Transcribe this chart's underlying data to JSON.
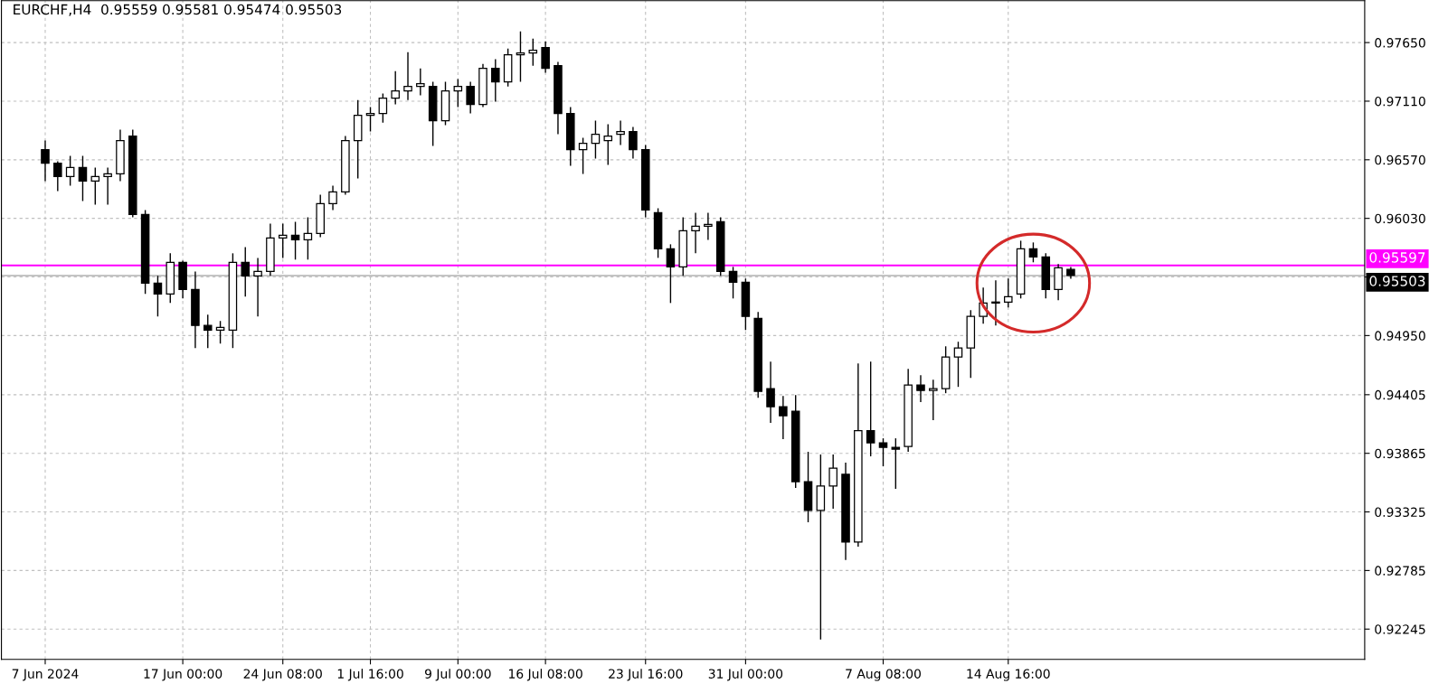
{
  "chart_data": {
    "type": "candlestick",
    "title": "EURCHF,H4  0.95559 0.95581 0.95474 0.95503",
    "categories": [
      null,
      null,
      null,
      "7 Jun 2024",
      null,
      null,
      null,
      null,
      null,
      null,
      null,
      null,
      null,
      null,
      "17 Jun 00:00",
      null,
      null,
      null,
      null,
      null,
      null,
      null,
      "24 Jun 08:00",
      null,
      null,
      null,
      null,
      null,
      null,
      "1 Jul 16:00",
      null,
      null,
      null,
      null,
      null,
      null,
      "9 Jul 00:00",
      null,
      null,
      null,
      null,
      null,
      null,
      "16 Jul 08:00",
      null,
      null,
      null,
      null,
      null,
      null,
      null,
      "23 Jul 16:00",
      null,
      null,
      null,
      null,
      null,
      null,
      null,
      "31 Jul 00:00",
      null,
      null,
      null,
      null,
      null,
      null,
      null,
      null,
      null,
      null,
      "7 Aug 08:00",
      null,
      null,
      null,
      null,
      null,
      null,
      null,
      null,
      null,
      "14 Aug 16:00",
      null,
      null,
      null,
      null,
      null,
      null,
      null,
      null,
      null,
      null,
      null,
      null,
      null,
      null,
      null,
      null,
      null,
      null,
      null,
      null,
      null,
      null,
      null,
      null,
      null,
      null,
      null,
      null
    ],
    "series": [
      {
        "color": "#000000",
        "ohlc": [
          null,
          null,
          null,
          [
            0.96664,
            0.96747,
            0.96373,
            0.96539
          ],
          [
            0.96539,
            0.96556,
            0.96282,
            0.96415
          ],
          [
            0.96415,
            0.96606,
            0.96331,
            0.96498
          ],
          [
            0.96498,
            0.96606,
            0.9619,
            0.96373
          ],
          [
            0.96373,
            0.96498,
            0.96157,
            0.96415
          ],
          [
            0.96415,
            0.96498,
            0.96157,
            0.9644
          ],
          [
            0.9644,
            0.96847,
            0.96373,
            0.96747
          ],
          [
            0.96789,
            0.96847,
            0.9604,
            0.96065
          ],
          [
            0.96065,
            0.96107,
            0.95334,
            0.95433
          ],
          [
            0.95433,
            0.955,
            0.95126,
            0.95334
          ],
          [
            0.95334,
            0.95708,
            0.9525,
            0.95625
          ],
          [
            0.95625,
            0.95641,
            0.95292,
            0.95375
          ],
          [
            0.95375,
            0.95541,
            0.94835,
            0.95043
          ],
          [
            0.95043,
            0.95142,
            0.94835,
            0.95001
          ],
          [
            0.95001,
            0.95084,
            0.94876,
            0.95026
          ],
          [
            0.95001,
            0.95708,
            0.94835,
            0.95625
          ],
          [
            0.95625,
            0.95766,
            0.95309,
            0.955
          ],
          [
            0.955,
            0.95666,
            0.95126,
            0.95541
          ],
          [
            0.95541,
            0.95982,
            0.955,
            0.95849
          ],
          [
            0.95849,
            0.95982,
            0.95666,
            0.95874
          ],
          [
            0.95874,
            0.95999,
            0.9565,
            0.95832
          ],
          [
            0.95832,
            0.9604,
            0.9565,
            0.95891
          ],
          [
            0.95891,
            0.96248,
            0.95857,
            0.96165
          ],
          [
            0.96165,
            0.96331,
            0.96107,
            0.96273
          ],
          [
            0.96273,
            0.96789,
            0.96248,
            0.96747
          ],
          [
            0.96747,
            0.97121,
            0.96398,
            0.9698
          ],
          [
            0.9698,
            0.97055,
            0.9683,
            0.96997
          ],
          [
            0.96997,
            0.9718,
            0.96913,
            0.97138
          ],
          [
            0.97138,
            0.97387,
            0.9708,
            0.97205
          ],
          [
            0.97205,
            0.97562,
            0.97121,
            0.97246
          ],
          [
            0.97246,
            0.97412,
            0.97163,
            0.97271
          ],
          [
            0.97246,
            0.97288,
            0.96697,
            0.9693
          ],
          [
            0.9693,
            0.97288,
            0.96889,
            0.97205
          ],
          [
            0.97205,
            0.97313,
            0.97055,
            0.97246
          ],
          [
            0.97246,
            0.97288,
            0.96997,
            0.9708
          ],
          [
            0.9708,
            0.97454,
            0.97055,
            0.97412
          ],
          [
            0.97412,
            0.97496,
            0.97105,
            0.97288
          ],
          [
            0.97288,
            0.97595,
            0.97246,
            0.97537
          ],
          [
            0.97537,
            0.97753,
            0.97288,
            0.97554
          ],
          [
            0.97554,
            0.97687,
            0.97437,
            0.97579
          ],
          [
            0.97604,
            0.97662,
            0.97371,
            0.97412
          ],
          [
            0.97437,
            0.97471,
            0.96805,
            0.96997
          ],
          [
            0.96997,
            0.97055,
            0.96514,
            0.96664
          ],
          [
            0.96664,
            0.96772,
            0.9644,
            0.96722
          ],
          [
            0.96722,
            0.9693,
            0.96581,
            0.96805
          ],
          [
            0.96747,
            0.96897,
            0.96523,
            0.96789
          ],
          [
            0.96805,
            0.9693,
            0.96706,
            0.9683
          ],
          [
            0.9683,
            0.96872,
            0.96581,
            0.96664
          ],
          [
            0.96664,
            0.96706,
            0.9604,
            0.96107
          ],
          [
            0.96082,
            0.96124,
            0.95666,
            0.95749
          ],
          [
            0.95749,
            0.95791,
            0.9525,
            0.95583
          ],
          [
            0.95583,
            0.9604,
            0.955,
            0.95916
          ],
          [
            0.95916,
            0.96082,
            0.95708,
            0.95957
          ],
          [
            0.95957,
            0.96082,
            0.95832,
            0.95974
          ],
          [
            0.95999,
            0.9604,
            0.955,
            0.95541
          ],
          [
            0.95541,
            0.95583,
            0.95292,
            0.95442
          ],
          [
            0.95442,
            0.95475,
            0.95001,
            0.95126
          ],
          [
            0.95109,
            0.95167,
            0.94377,
            0.94436
          ],
          [
            0.94461,
            0.9471,
            0.94145,
            0.94294
          ],
          [
            0.94294,
            0.94394,
            0.93995,
            0.94211
          ],
          [
            0.94253,
            0.94402,
            0.93546,
            0.93604
          ],
          [
            0.93604,
            0.93879,
            0.9323,
            0.93338
          ],
          [
            0.93338,
            0.93854,
            0.92149,
            0.93563
          ],
          [
            0.93563,
            0.93854,
            0.93355,
            0.93729
          ],
          [
            0.93671,
            0.93779,
            0.92881,
            0.93047
          ],
          [
            0.93047,
            0.94693,
            0.93005,
            0.94074
          ],
          [
            0.94074,
            0.9471,
            0.93837,
            0.93962
          ],
          [
            0.93962,
            0.94003,
            0.93745,
            0.9392
          ],
          [
            0.9392,
            0.94003,
            0.93538,
            0.93903
          ],
          [
            0.93928,
            0.94644,
            0.93879,
            0.94494
          ],
          [
            0.94494,
            0.94585,
            0.94336,
            0.94444
          ],
          [
            0.94444,
            0.94543,
            0.9417,
            0.94461
          ],
          [
            0.94461,
            0.94851,
            0.94419,
            0.94752
          ],
          [
            0.94752,
            0.94893,
            0.94477,
            0.94835
          ],
          [
            0.94835,
            0.95184,
            0.9456,
            0.95126
          ],
          [
            0.95126,
            0.95392,
            0.95059,
            0.9525
          ],
          [
            0.9525,
            0.95458,
            0.95043,
            0.95259
          ],
          [
            0.95259,
            0.95475,
            0.95209,
            0.95309
          ],
          [
            0.95334,
            0.95824,
            0.95292,
            0.95749
          ],
          [
            0.95749,
            0.95808,
            0.95625,
            0.95675
          ],
          [
            0.95675,
            0.95708,
            0.95292,
            0.95375
          ],
          [
            0.95375,
            0.95608,
            0.95275,
            0.95575
          ],
          [
            0.95559,
            0.95581,
            0.95474,
            0.95503
          ],
          null,
          null,
          null,
          null,
          null,
          null,
          null,
          null,
          null,
          null,
          null,
          null,
          null,
          null,
          null,
          null,
          null,
          null,
          null,
          null,
          null,
          null,
          null
        ]
      }
    ],
    "ylim": [
      0.91966,
      0.98036
    ],
    "yticks": [
      {
        "value": 0.9765,
        "label": "0.97650"
      },
      {
        "value": 0.9711,
        "label": "0.97110"
      },
      {
        "value": 0.9657,
        "label": "0.96570"
      },
      {
        "value": 0.9603,
        "label": "0.96030"
      },
      {
        "value": 0.9549,
        "label": null
      },
      {
        "value": 0.9495,
        "label": "0.94950"
      },
      {
        "value": 0.94405,
        "label": "0.94405"
      },
      {
        "value": 0.93865,
        "label": "0.93865"
      },
      {
        "value": 0.93325,
        "label": "0.93325"
      },
      {
        "value": 0.92785,
        "label": "0.92785"
      },
      {
        "value": 0.92245,
        "label": "0.92245"
      }
    ],
    "ref_lines": [
      {
        "axis": "y",
        "value": 0.95597,
        "label": "0.95597",
        "color": "#ff00ff"
      },
      {
        "axis": "y",
        "value": 0.95503,
        "label": "0.95503",
        "color": "#b0b0b0"
      }
    ],
    "grid": true
  }
}
